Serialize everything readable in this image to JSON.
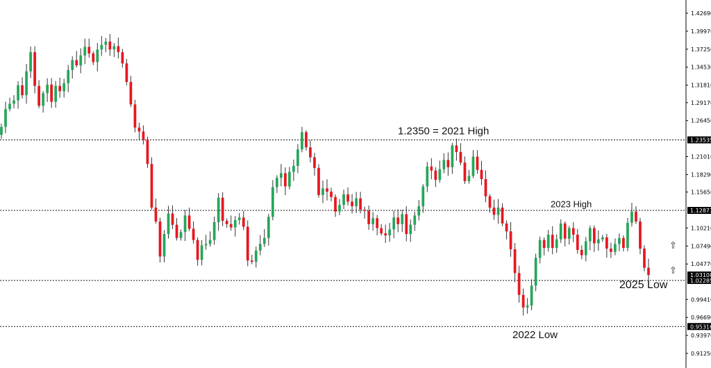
{
  "chart_data": {
    "type": "candlestick",
    "title": "",
    "xlabel": "",
    "ylabel": "",
    "ylim": [
      0.9125,
      1.4269
    ],
    "grid": false,
    "colors": {
      "up": "#26a65b",
      "down": "#e8161f",
      "wick": "#333333"
    },
    "y_ticks": [
      {
        "value": 1.4269,
        "label": "1.42690"
      },
      {
        "value": 1.3997,
        "label": "1.39970"
      },
      {
        "value": 1.3725,
        "label": "1.37250"
      },
      {
        "value": 1.3453,
        "label": "1.34530"
      },
      {
        "value": 1.3181,
        "label": "1.31810"
      },
      {
        "value": 1.2917,
        "label": "1.29170"
      },
      {
        "value": 1.2645,
        "label": "1.26450"
      },
      {
        "value": 1.2101,
        "label": "1.21010"
      },
      {
        "value": 1.1829,
        "label": "1.18290"
      },
      {
        "value": 1.1565,
        "label": "1.15650"
      },
      {
        "value": 1.1021,
        "label": "1.10210"
      },
      {
        "value": 1.0749,
        "label": "1.07490"
      },
      {
        "value": 1.0477,
        "label": "1.04770"
      },
      {
        "value": 0.9941,
        "label": "0.99410"
      },
      {
        "value": 0.9669,
        "label": "0.96690"
      },
      {
        "value": 0.9397,
        "label": "0.93970"
      },
      {
        "value": 0.9125,
        "label": "0.91250"
      }
    ],
    "levels": [
      {
        "value": 1.23535,
        "label": "1.23535"
      },
      {
        "value": 1.12871,
        "label": "1.12871"
      },
      {
        "value": 1.02285,
        "label": "1.02285"
      },
      {
        "value": 0.95316,
        "label": "0.95316"
      }
    ],
    "current_price": {
      "value": 1.03108,
      "label": "1.03108"
    },
    "annotations": [
      {
        "text": "1.2350 = 2021 High",
        "value": 1.2435
      },
      {
        "text": "2023 High",
        "value": 1.1335
      },
      {
        "text": "2025 Low",
        "value": 1.011
      },
      {
        "text": "2022 Low",
        "value": 0.9355
      }
    ],
    "arrows": [
      {
        "symbol": "⇧",
        "value": 1.077
      },
      {
        "symbol": "⇧",
        "value": 1.039
      }
    ],
    "closes": [
      1.255,
      1.282,
      1.29,
      1.295,
      1.318,
      1.303,
      1.339,
      1.368,
      1.317,
      1.287,
      1.306,
      1.319,
      1.293,
      1.317,
      1.309,
      1.321,
      1.341,
      1.356,
      1.348,
      1.363,
      1.376,
      1.366,
      1.353,
      1.372,
      1.379,
      1.384,
      1.372,
      1.377,
      1.368,
      1.351,
      1.323,
      1.289,
      1.254,
      1.248,
      1.236,
      1.199,
      1.133,
      1.112,
      1.059,
      1.093,
      1.124,
      1.107,
      1.087,
      1.096,
      1.121,
      1.101,
      1.084,
      1.054,
      1.076,
      1.078,
      1.084,
      1.111,
      1.148,
      1.113,
      1.108,
      1.103,
      1.114,
      1.118,
      1.104,
      1.053,
      1.051,
      1.068,
      1.078,
      1.087,
      1.119,
      1.164,
      1.178,
      1.185,
      1.165,
      1.187,
      1.196,
      1.221,
      1.247,
      1.224,
      1.209,
      1.193,
      1.152,
      1.162,
      1.157,
      1.149,
      1.127,
      1.137,
      1.153,
      1.142,
      1.135,
      1.147,
      1.13,
      1.128,
      1.108,
      1.117,
      1.102,
      1.094,
      1.091,
      1.1,
      1.118,
      1.108,
      1.123,
      1.093,
      1.107,
      1.121,
      1.135,
      1.165,
      1.195,
      1.189,
      1.175,
      1.191,
      1.205,
      1.194,
      1.227,
      1.217,
      1.201,
      1.173,
      1.181,
      1.21,
      1.19,
      1.176,
      1.15,
      1.133,
      1.122,
      1.133,
      1.109,
      1.097,
      1.07,
      1.034,
      1.001,
      0.982,
      0.985,
      1.015,
      1.057,
      1.084,
      1.072,
      1.092,
      1.072,
      1.085,
      1.109,
      1.086,
      1.102,
      1.092,
      1.069,
      1.061,
      1.082,
      1.102,
      1.079,
      1.085,
      1.088,
      1.071,
      1.066,
      1.078,
      1.087,
      1.072,
      1.11,
      1.127,
      1.112,
      1.071,
      1.042,
      1.031
    ]
  }
}
